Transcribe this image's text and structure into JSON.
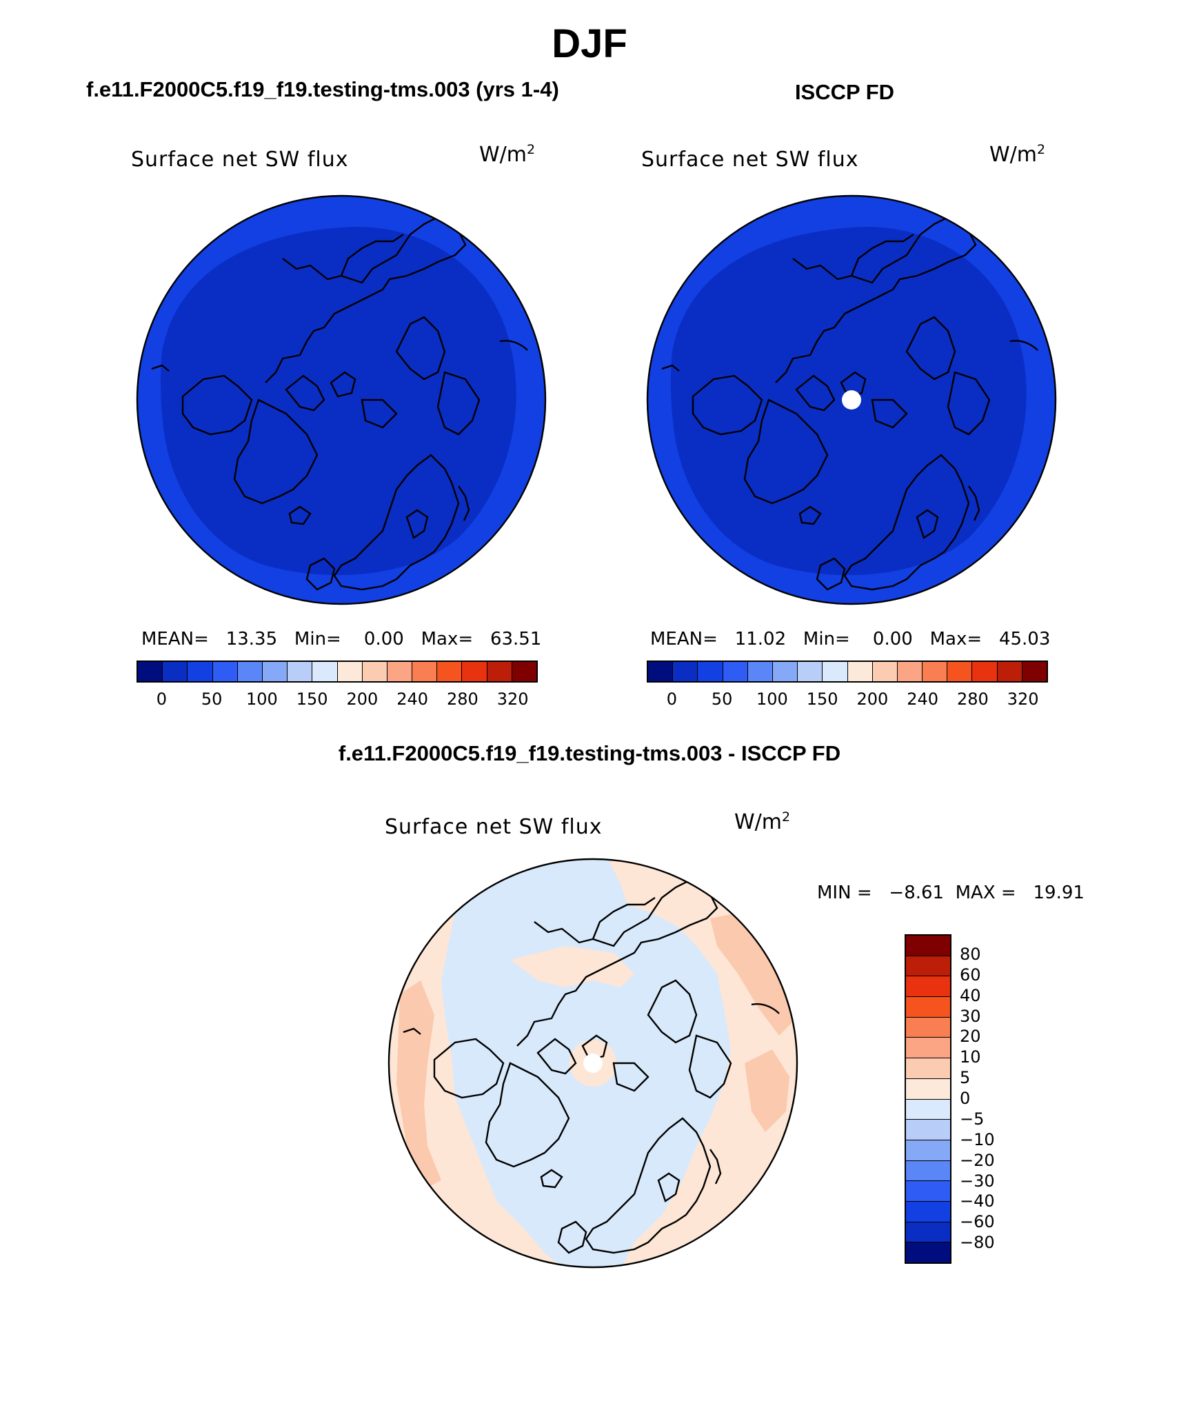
{
  "page": {
    "title": "DJF",
    "left_panel_title": "f.e11.F2000C5.f19_f19.testing-tms.003 (yrs 1-4)",
    "right_panel_title": "ISCCP FD",
    "diff_panel_title": "f.e11.F2000C5.f19_f19.testing-tms.003 - ISCCP FD"
  },
  "panels": [
    {
      "id": "model",
      "variable": "Surface net SW flux",
      "units_base": "W/m",
      "units_exp": "2",
      "stats": {
        "mean_label": "MEAN=",
        "mean": "13.35",
        "min_label": "Min=",
        "min": "0.00",
        "max_label": "Max=",
        "max": "63.51"
      },
      "fill_inner": "#0a2ec4",
      "fill_outer": "#1240e3",
      "missing_pole": false
    },
    {
      "id": "obs",
      "variable": "Surface net SW flux",
      "units_base": "W/m",
      "units_exp": "2",
      "stats": {
        "mean_label": "MEAN=",
        "mean": "11.02",
        "min_label": "Min=",
        "min": "0.00",
        "max_label": "Max=",
        "max": "45.03"
      },
      "fill_inner": "#0a2ec4",
      "fill_outer": "#1240e3",
      "missing_pole": true
    }
  ],
  "abs_colorbar": {
    "colors": [
      "#000d7f",
      "#0a2ec4",
      "#1240e3",
      "#2e5cf5",
      "#5a86f7",
      "#86a9f7",
      "#b8cdf8",
      "#dae9fb",
      "#fde9d9",
      "#fcccb2",
      "#fba585",
      "#f97f52",
      "#f5541f",
      "#e83210",
      "#bd1e08",
      "#7f0000"
    ],
    "labels": [
      "0",
      "50",
      "100",
      "150",
      "200",
      "240",
      "280",
      "320"
    ]
  },
  "diff_panel": {
    "variable": "Surface net SW flux",
    "units_base": "W/m",
    "units_exp": "2",
    "min_label": "MIN =",
    "min": "−8.61",
    "max_label": "MAX =",
    "max": "19.91",
    "fill_base": "#d8e9fb",
    "fill_positive": "#fde6d6",
    "fill_positive2": "#fbc9ad"
  },
  "diff_colorbar": {
    "colors": [
      "#7f0000",
      "#bd1e08",
      "#e83210",
      "#f5541f",
      "#f97f52",
      "#fba585",
      "#fcccb2",
      "#fde9d9",
      "#dae9fb",
      "#b8cdf8",
      "#86a9f7",
      "#5a86f7",
      "#2e5cf5",
      "#1240e3",
      "#0a2ec4",
      "#000d7f"
    ],
    "labels": [
      "80",
      "60",
      "40",
      "30",
      "20",
      "10",
      "5",
      "0",
      "−5",
      "−10",
      "−20",
      "−30",
      "−40",
      "−60",
      "−80"
    ]
  }
}
